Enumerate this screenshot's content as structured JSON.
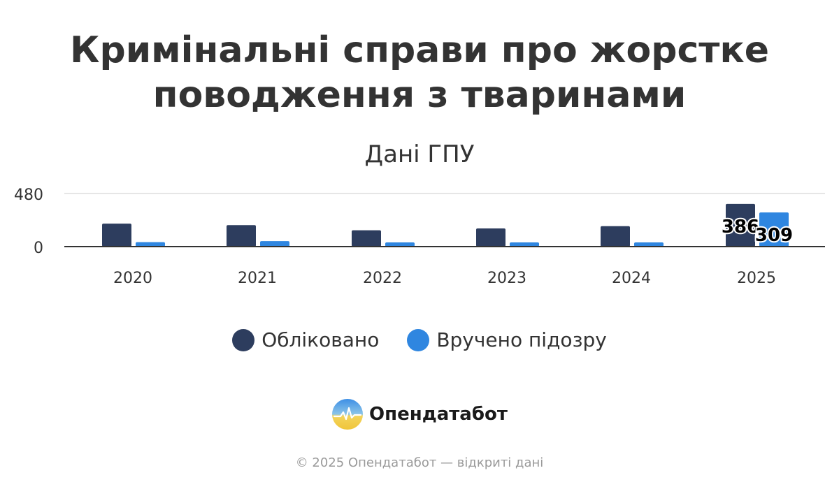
{
  "header": {
    "title_line1": "Кримінальні справи про жорстке",
    "title_line2": "поводження з тваринами",
    "subtitle": "Дані ГПУ"
  },
  "colors": {
    "series_registered": "#2d3d5e",
    "series_suspicion": "#2f86e0",
    "axis": "#333333",
    "grid": "#dddddd"
  },
  "chart_data": {
    "type": "bar",
    "categories": [
      "2020",
      "2021",
      "2022",
      "2023",
      "2024",
      "2025"
    ],
    "series": [
      {
        "name": "Обліковано",
        "values": [
          208,
          194,
          148,
          164,
          185,
          386
        ]
      },
      {
        "name": "Вручено підозру",
        "values": [
          40,
          50,
          38,
          38,
          38,
          309
        ]
      }
    ],
    "data_labels": [
      {
        "series": 0,
        "index": 5,
        "text": "386"
      },
      {
        "series": 1,
        "index": 5,
        "text": "309"
      }
    ],
    "ylim": [
      0,
      480
    ],
    "yticks": [
      "0",
      "480"
    ],
    "grid": true,
    "legend": "bottom-center"
  },
  "legend": {
    "items": [
      {
        "label": "Обліковано"
      },
      {
        "label": "Вручено підозру"
      }
    ]
  },
  "brand": {
    "name": "Опендатабот",
    "icon": "opendatabot-logo-icon"
  },
  "footer": {
    "text": "© 2025 Опендатабот — відкриті дані"
  }
}
